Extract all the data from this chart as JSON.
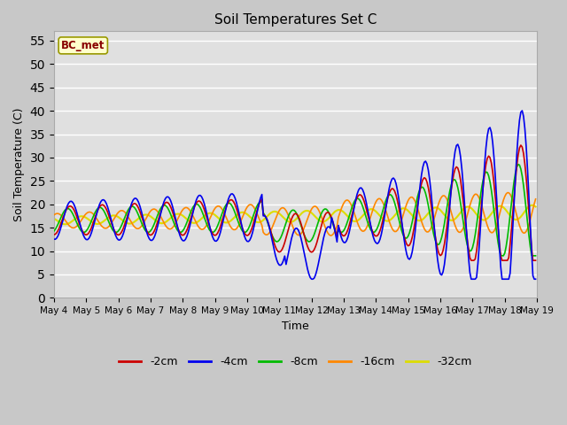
{
  "title": "Soil Temperatures Set C",
  "xlabel": "Time",
  "ylabel": "Soil Temperature (C)",
  "ylim": [
    0,
    57
  ],
  "yticks": [
    0,
    5,
    10,
    15,
    20,
    25,
    30,
    35,
    40,
    45,
    50,
    55
  ],
  "series_colors": {
    "-2cm": "#cc0000",
    "-4cm": "#0000ee",
    "-8cm": "#00bb00",
    "-16cm": "#ff8800",
    "-32cm": "#dddd00"
  },
  "annotation_text": "BC_met",
  "annotation_bg": "#ffffcc",
  "annotation_border": "#999900",
  "annotation_text_color": "#880000",
  "fig_bg": "#c8c8c8",
  "plot_bg": "#e0e0e0",
  "grid_color": "#ffffff"
}
